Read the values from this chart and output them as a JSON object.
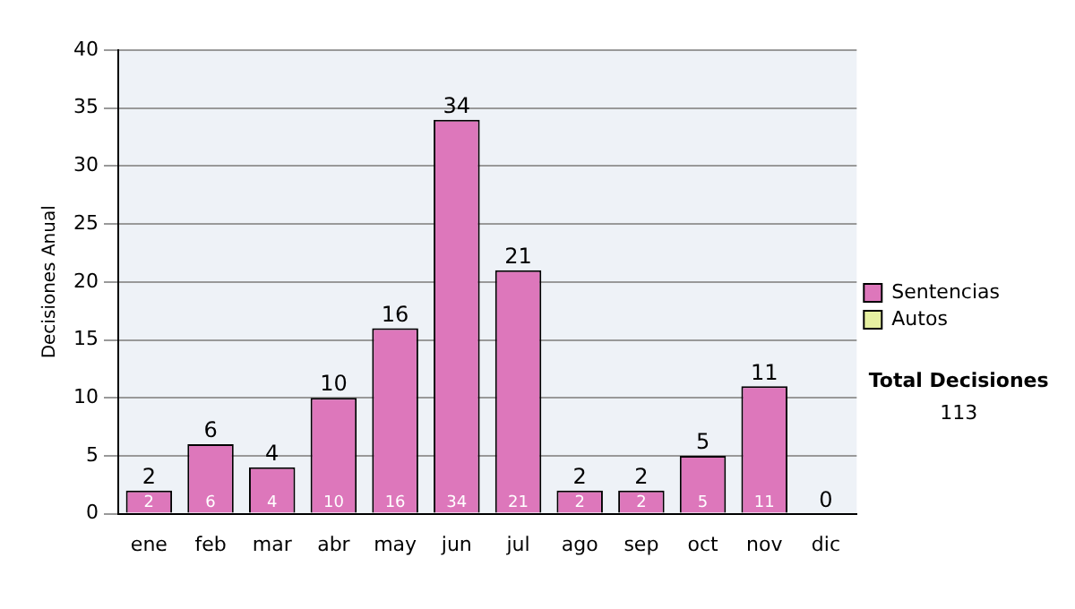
{
  "chart_data": {
    "type": "bar",
    "ylabel": "Decisiones Anual",
    "categories": [
      "ene",
      "feb",
      "mar",
      "abr",
      "may",
      "jun",
      "jul",
      "ago",
      "sep",
      "oct",
      "nov",
      "dic"
    ],
    "series": [
      {
        "name": "Sentencias",
        "color": "#dd77bb",
        "values": [
          2,
          6,
          4,
          10,
          16,
          34,
          21,
          2,
          2,
          5,
          11,
          0
        ],
        "value_labels": [
          "2",
          "6",
          "4",
          "10",
          "16",
          "34",
          "21",
          "2",
          "2",
          "5",
          "11",
          null
        ]
      },
      {
        "name": "Autos",
        "color": "#e6f0a0",
        "values": [
          0,
          0,
          0,
          0,
          0,
          0,
          0,
          0,
          0,
          0,
          0,
          0
        ]
      }
    ],
    "stacked": true,
    "totals": [
      "2",
      "6",
      "4",
      "10",
      "16",
      "34",
      "21",
      "2",
      "2",
      "5",
      "11",
      "0"
    ],
    "ylim": [
      0,
      40
    ],
    "yticks": [
      0,
      5,
      10,
      15,
      20,
      25,
      30,
      35,
      40
    ],
    "grid": "y",
    "legend": "right",
    "annotations": [
      "Total Decisiones",
      "113"
    ]
  }
}
